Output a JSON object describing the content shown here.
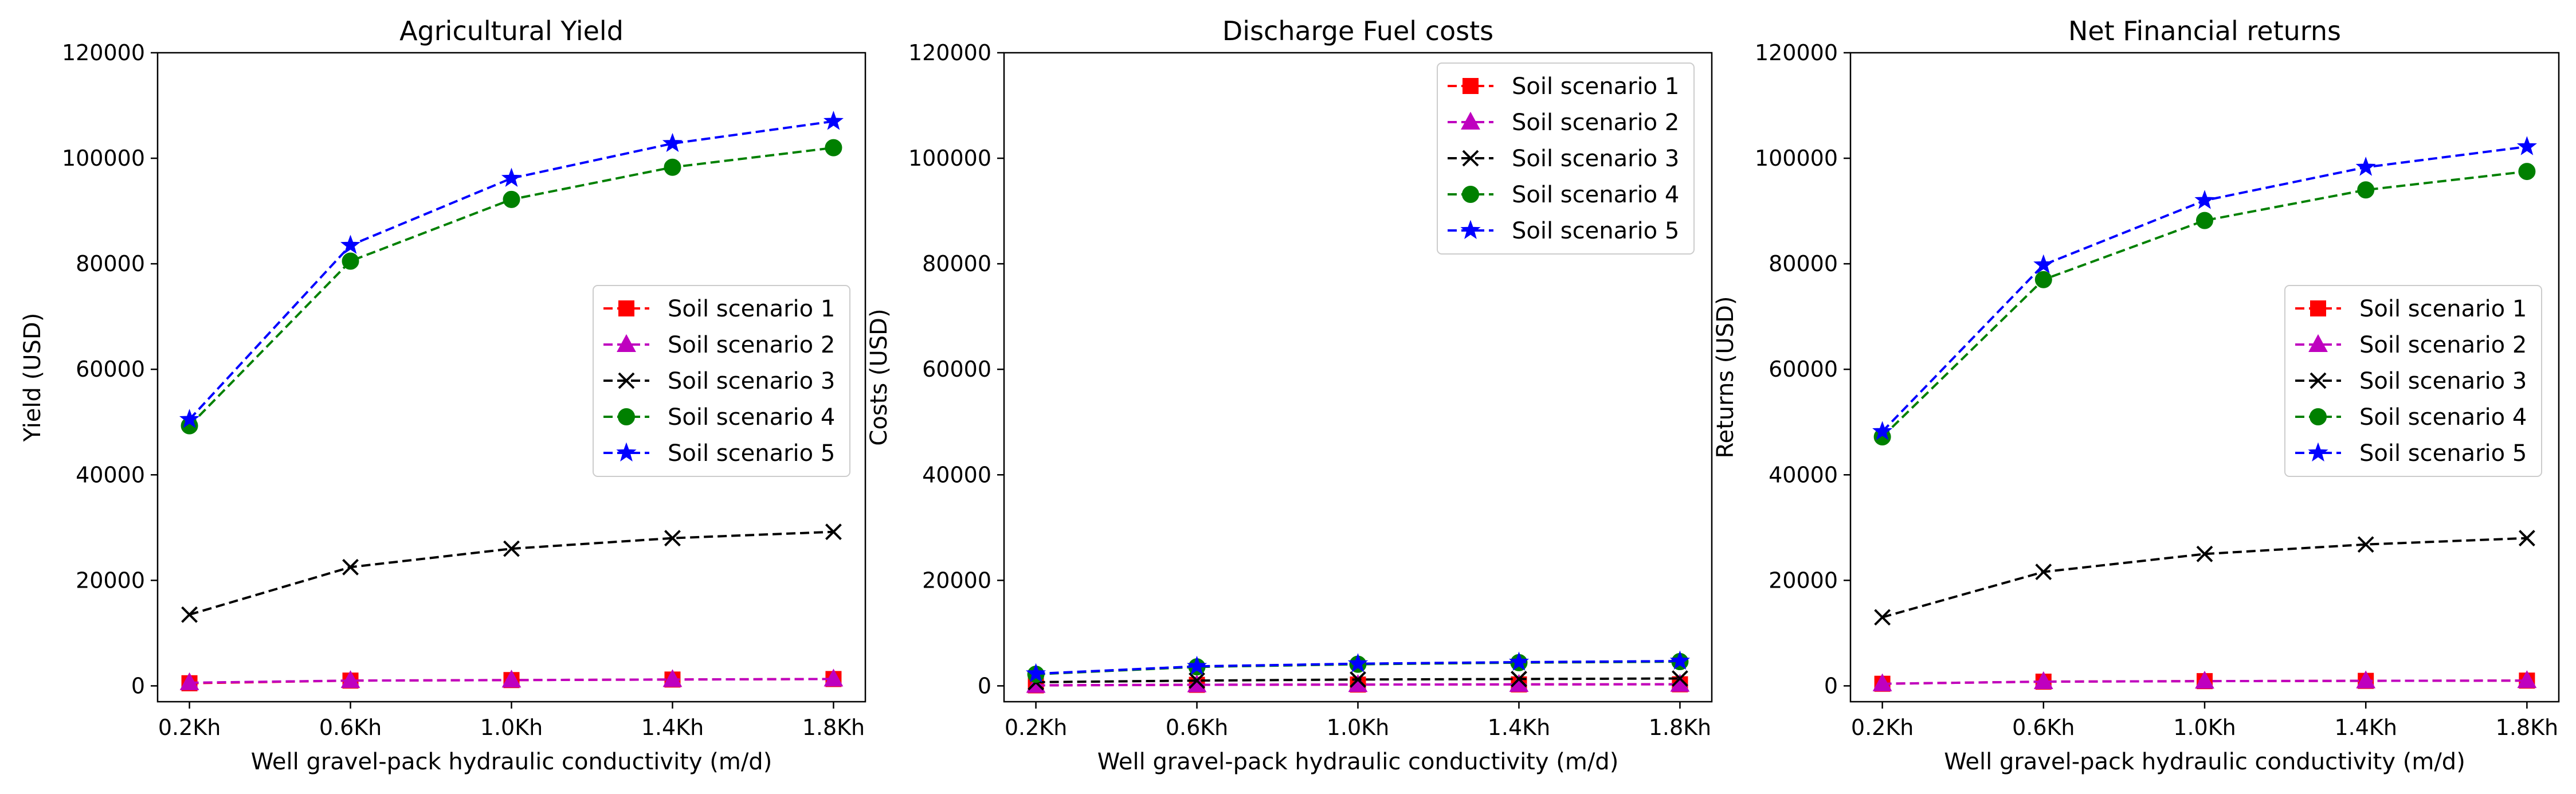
{
  "chart_data": [
    {
      "type": "line",
      "title": "Agricultural Yield",
      "xlabel": "Well gravel-pack hydraulic conductivity (m/d)",
      "ylabel": "Yield (USD)",
      "categories": [
        "0.2Kh",
        "0.6Kh",
        "1.0Kh",
        "1.4Kh",
        "1.8Kh"
      ],
      "ylim": [
        -3000,
        120000
      ],
      "yticks": [
        "0",
        "20000",
        "40000",
        "60000",
        "80000",
        "100000",
        "120000"
      ],
      "grid": false,
      "legend_position": "center-right",
      "series": [
        {
          "name": "Soil scenario 1",
          "values": [
            500,
            1000,
            1100,
            1200,
            1300
          ]
        },
        {
          "name": "Soil scenario 2",
          "values": [
            600,
            1000,
            1100,
            1200,
            1300
          ]
        },
        {
          "name": "Soil scenario 3",
          "values": [
            13500,
            22500,
            26000,
            28000,
            29200
          ]
        },
        {
          "name": "Soil scenario 4",
          "values": [
            49300,
            80500,
            92200,
            98300,
            102000
          ]
        },
        {
          "name": "Soil scenario 5",
          "values": [
            50500,
            83500,
            96200,
            102800,
            107000
          ]
        }
      ]
    },
    {
      "type": "line",
      "title": "Discharge Fuel costs",
      "xlabel": "Well gravel-pack hydraulic conductivity (m/d)",
      "ylabel": "Costs (USD)",
      "categories": [
        "0.2Kh",
        "0.6Kh",
        "1.0Kh",
        "1.4Kh",
        "1.8Kh"
      ],
      "ylim": [
        -3000,
        120000
      ],
      "yticks": [
        "0",
        "20000",
        "40000",
        "60000",
        "80000",
        "100000",
        "120000"
      ],
      "grid": false,
      "legend_position": "upper-right",
      "series": [
        {
          "name": "Soil scenario 1",
          "values": [
            100,
            200,
            250,
            280,
            300
          ]
        },
        {
          "name": "Soil scenario 2",
          "values": [
            100,
            200,
            250,
            280,
            300
          ]
        },
        {
          "name": "Soil scenario 3",
          "values": [
            700,
            1000,
            1200,
            1300,
            1400
          ]
        },
        {
          "name": "Soil scenario 4",
          "values": [
            2200,
            3600,
            4100,
            4400,
            4600
          ]
        },
        {
          "name": "Soil scenario 5",
          "values": [
            2300,
            3700,
            4200,
            4500,
            4700
          ]
        }
      ]
    },
    {
      "type": "line",
      "title": "Net Financial returns",
      "xlabel": "Well gravel-pack hydraulic conductivity (m/d)",
      "ylabel": "Returns (USD)",
      "categories": [
        "0.2Kh",
        "0.6Kh",
        "1.0Kh",
        "1.4Kh",
        "1.8Kh"
      ],
      "ylim": [
        -3000,
        120000
      ],
      "yticks": [
        "0",
        "20000",
        "40000",
        "60000",
        "80000",
        "100000",
        "120000"
      ],
      "grid": false,
      "legend_position": "center-right",
      "series": [
        {
          "name": "Soil scenario 1",
          "values": [
            400,
            800,
            900,
            950,
            1000
          ]
        },
        {
          "name": "Soil scenario 2",
          "values": [
            400,
            800,
            900,
            950,
            1000
          ]
        },
        {
          "name": "Soil scenario 3",
          "values": [
            13000,
            21600,
            25000,
            26800,
            28000
          ]
        },
        {
          "name": "Soil scenario 4",
          "values": [
            47200,
            77000,
            88200,
            94000,
            97500
          ]
        },
        {
          "name": "Soil scenario 5",
          "values": [
            48200,
            79800,
            92000,
            98300,
            102200
          ]
        }
      ]
    }
  ],
  "series_styles": [
    {
      "color": "#ff0000",
      "marker": "square"
    },
    {
      "color": "#bf00bf",
      "marker": "triangle"
    },
    {
      "color": "#000000",
      "marker": "x"
    },
    {
      "color": "#008000",
      "marker": "circle"
    },
    {
      "color": "#0000ff",
      "marker": "star"
    }
  ]
}
